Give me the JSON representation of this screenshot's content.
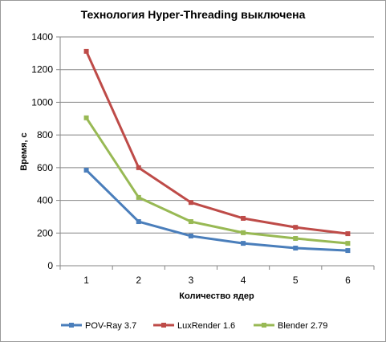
{
  "chart_data": {
    "type": "line",
    "title": "Технология Hyper-Threading выключена",
    "xlabel": "Количество ядер",
    "ylabel": "Время, с",
    "x": [
      1,
      2,
      3,
      4,
      5,
      6
    ],
    "ylim": [
      0,
      1400
    ],
    "yticks": [
      0,
      200,
      400,
      600,
      800,
      1000,
      1200,
      1400
    ],
    "grid": "horizontal",
    "legend": "bottom",
    "series": [
      {
        "name": "POV-Ray 3.7",
        "color": "#4a7ebb",
        "values": [
          585,
          270,
          182,
          137,
          108,
          93
        ]
      },
      {
        "name": "LuxRender 1.6",
        "color": "#be4b48",
        "values": [
          1312,
          600,
          387,
          290,
          235,
          196
        ]
      },
      {
        "name": "Blender 2.79",
        "color": "#98b954",
        "values": [
          905,
          418,
          270,
          202,
          167,
          137
        ]
      }
    ]
  }
}
